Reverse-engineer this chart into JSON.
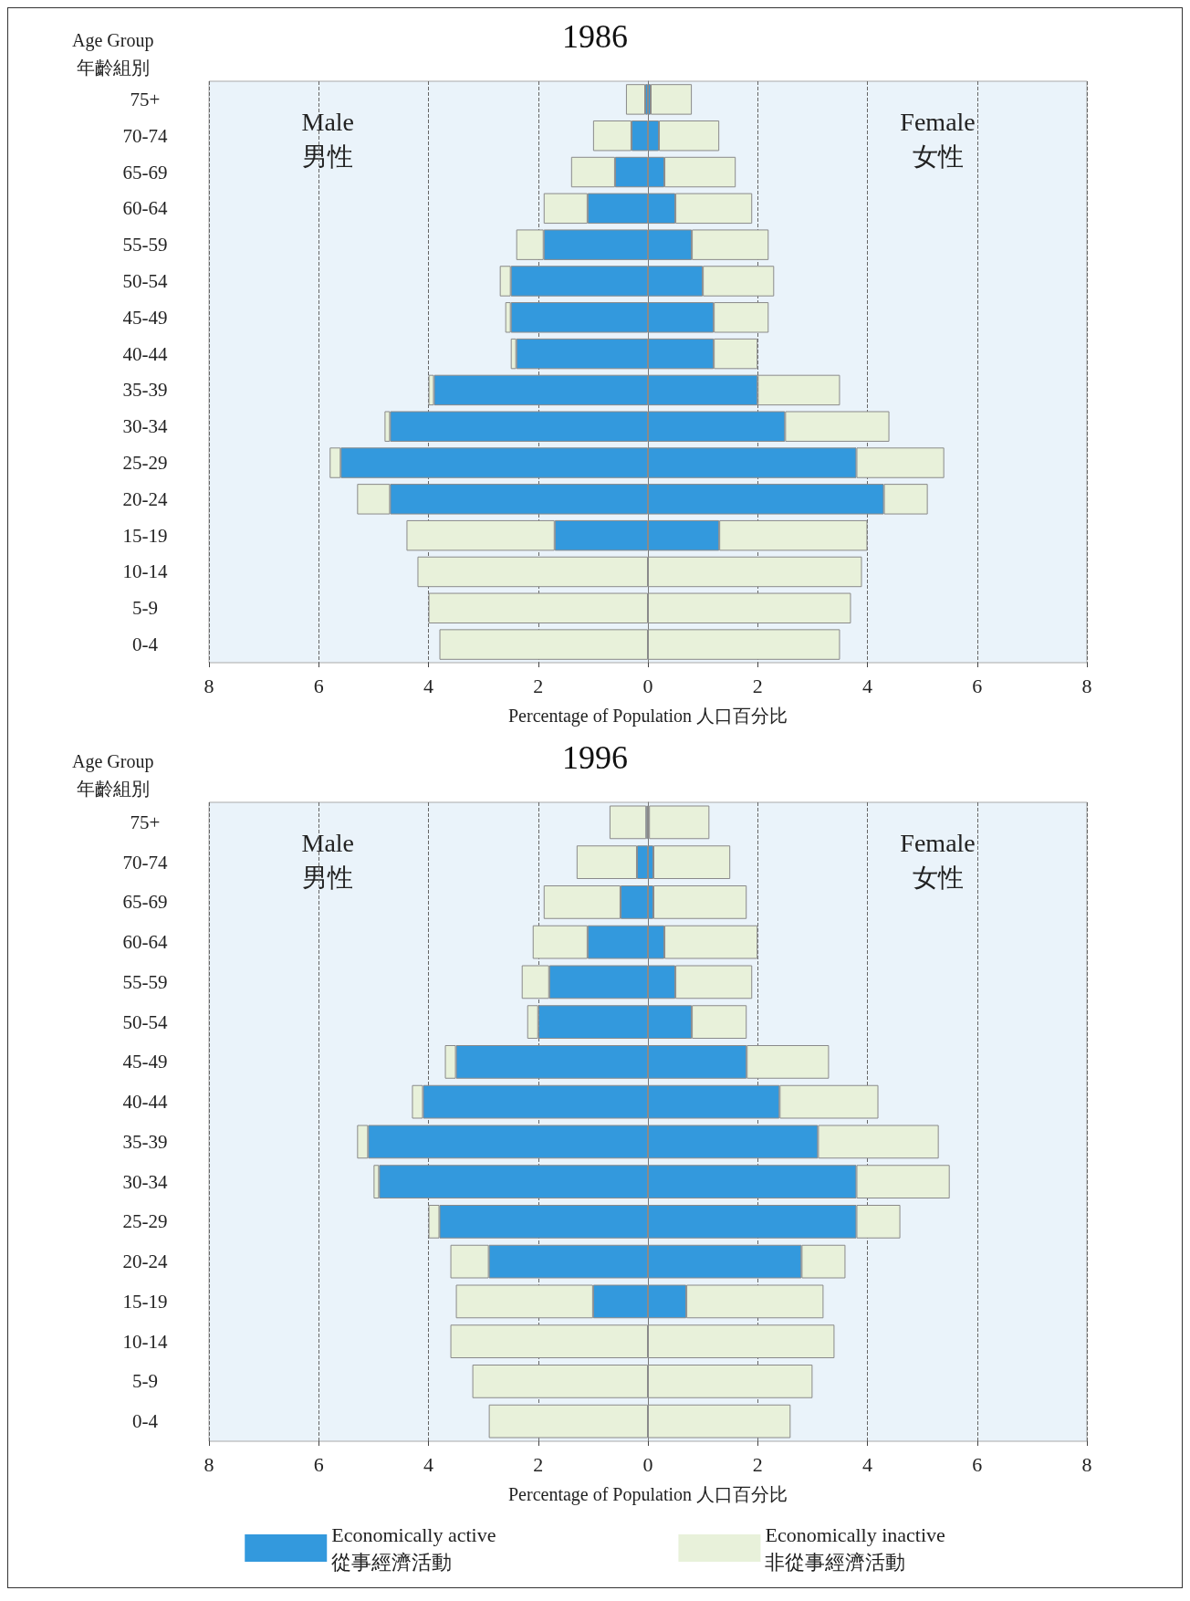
{
  "chart_data": [
    {
      "type": "bar",
      "title": "1986",
      "orientation": "horizontal",
      "stacked": true,
      "ylabel": "Age Group\n年齡組別",
      "xlabel": "Percentage of Population 人口百分比",
      "categories": [
        "75+",
        "70-74",
        "65-69",
        "60-64",
        "55-59",
        "50-54",
        "45-49",
        "40-44",
        "35-39",
        "30-34",
        "25-29",
        "20-24",
        "15-19",
        "10-14",
        "5-9",
        "0-4"
      ],
      "series": [
        {
          "color": "#3399dd",
          "values": [
            -0.05,
            -0.3,
            -0.6,
            -1.1,
            -1.9,
            -2.5,
            -2.5,
            -2.4,
            -3.9,
            -4.7,
            -5.6,
            -4.7,
            -1.7,
            null,
            null,
            null
          ]
        },
        {
          "color": "#e8f1da",
          "values": [
            -0.35,
            -0.7,
            -0.8,
            -0.8,
            -0.5,
            -0.2,
            -0.1,
            -0.1,
            -0.1,
            -0.1,
            -0.2,
            -0.6,
            -2.7,
            -4.2,
            -4.0,
            -3.8
          ]
        },
        {
          "color": "#3399dd",
          "values": [
            0.05,
            0.2,
            0.3,
            0.5,
            0.8,
            1.0,
            1.2,
            1.2,
            2.0,
            2.5,
            3.8,
            4.3,
            1.3,
            null,
            null,
            null
          ]
        },
        {
          "color": "#e8f1da",
          "values": [
            0.75,
            1.1,
            1.3,
            1.4,
            1.4,
            1.3,
            1.0,
            0.8,
            1.5,
            1.9,
            1.6,
            0.8,
            2.7,
            3.9,
            3.7,
            3.5
          ]
        }
      ],
      "xlim": [
        -8,
        8
      ],
      "xticks": [
        {
          "value": -8,
          "label": "8"
        },
        {
          "value": -6,
          "label": "6"
        },
        {
          "value": -4,
          "label": "4"
        },
        {
          "value": -2,
          "label": "2"
        },
        0,
        2,
        4,
        6,
        8
      ],
      "grid": "x",
      "legend": false,
      "annotations": [
        "Male\n男性",
        "Female\n女性"
      ]
    },
    {
      "type": "bar",
      "title": "1996",
      "orientation": "horizontal",
      "stacked": true,
      "ylabel": "Age Group\n年齡組別",
      "xlabel": "Percentage of Population 人口百分比",
      "categories": [
        "75+",
        "70-74",
        "65-69",
        "60-64",
        "55-59",
        "50-54",
        "45-49",
        "40-44",
        "35-39",
        "30-34",
        "25-29",
        "20-24",
        "15-19",
        "10-14",
        "5-9",
        "0-4"
      ],
      "series": [
        {
          "name": "Economically active\n從事經濟活動",
          "color": "#3399dd",
          "values": [
            -0.03,
            -0.2,
            -0.5,
            -1.1,
            -1.8,
            -2.0,
            -3.5,
            -4.1,
            -5.1,
            -4.9,
            -3.8,
            -2.9,
            -1.0,
            null,
            null,
            null
          ]
        },
        {
          "name": "Economically inactive\n非從事經濟活動",
          "color": "#e8f1da",
          "values": [
            -0.67,
            -1.1,
            -1.4,
            -1.0,
            -0.5,
            -0.2,
            -0.2,
            -0.2,
            -0.2,
            -0.1,
            -0.2,
            -0.7,
            -2.5,
            -3.6,
            -3.2,
            -2.9
          ]
        },
        {
          "color": "#3399dd",
          "values": [
            0.02,
            0.1,
            0.1,
            0.3,
            0.5,
            0.8,
            1.8,
            2.4,
            3.1,
            3.8,
            3.8,
            2.8,
            0.7,
            null,
            null,
            null
          ]
        },
        {
          "color": "#e8f1da",
          "values": [
            1.1,
            1.4,
            1.7,
            1.7,
            1.4,
            1.0,
            1.5,
            1.8,
            2.2,
            1.7,
            0.8,
            0.8,
            2.5,
            3.4,
            3.0,
            2.6
          ]
        }
      ],
      "xlim": [
        -8,
        8
      ],
      "xticks": [
        {
          "value": -8,
          "label": "8"
        },
        {
          "value": -6,
          "label": "6"
        },
        {
          "value": -4,
          "label": "4"
        },
        {
          "value": -2,
          "label": "2"
        },
        0,
        2,
        4,
        6,
        8
      ],
      "grid": "x",
      "legend": "bottom",
      "annotations": [
        "Male\n男性",
        "Female\n女性"
      ]
    }
  ]
}
